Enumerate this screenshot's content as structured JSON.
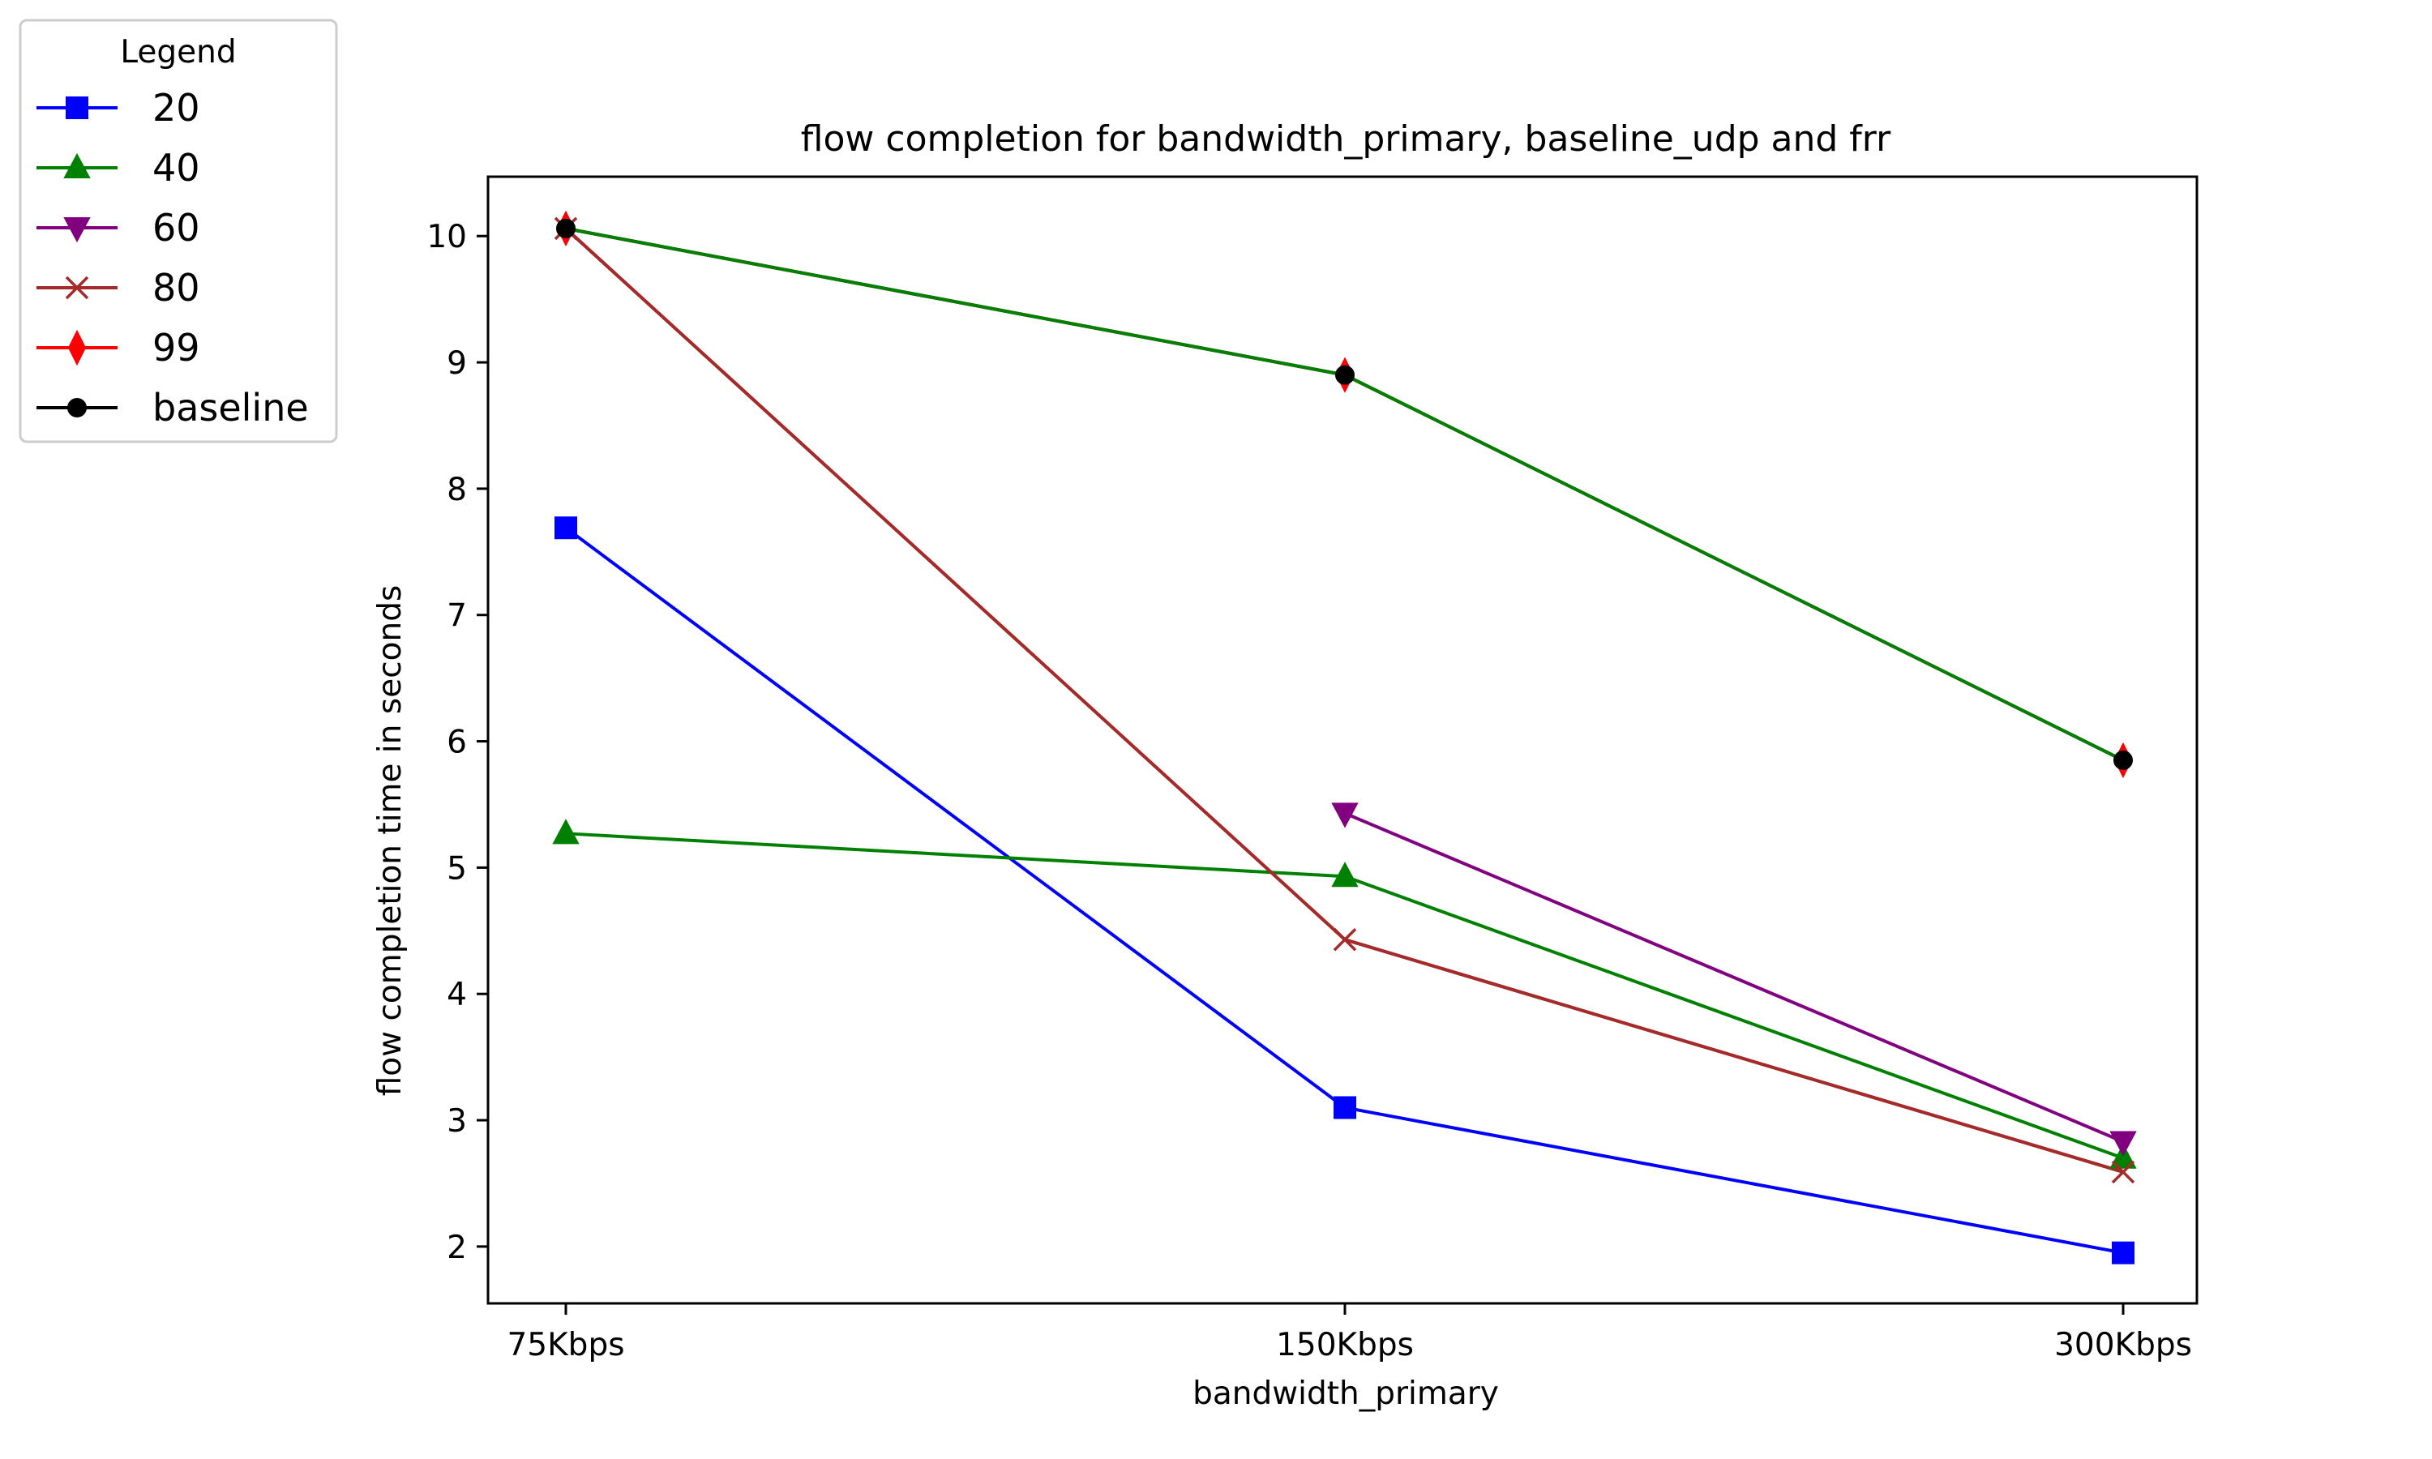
{
  "chart_data": {
    "type": "line",
    "title": "flow completion for bandwidth_primary, baseline_udp and frr",
    "xlabel": "bandwidth_primary",
    "ylabel": "flow completion time in seconds",
    "categories": [
      "75Kbps",
      "150Kbps",
      "300Kbps"
    ],
    "ylim": [
      1.55,
      10.47
    ],
    "yticks": [
      2,
      3,
      4,
      5,
      6,
      7,
      8,
      9,
      10
    ],
    "grid": false,
    "legend": {
      "title": "Legend",
      "placement": "outside top-left"
    },
    "series": [
      {
        "name": "20",
        "color": "#0000ff",
        "marker": "square",
        "values": [
          7.69,
          3.1,
          1.95
        ]
      },
      {
        "name": "40",
        "color": "#008000",
        "marker": "triangle-up",
        "values": [
          5.27,
          4.93,
          2.7
        ]
      },
      {
        "name": "60",
        "color": "#800080",
        "marker": "triangle-down",
        "values": [
          null,
          5.43,
          2.83
        ]
      },
      {
        "name": "80",
        "color": "#a52a2a",
        "marker": "x",
        "values": [
          10.06,
          4.43,
          2.59
        ]
      },
      {
        "name": "99",
        "color": "#ff0000",
        "marker": "thin-diamond",
        "values": [
          10.06,
          8.9,
          5.85
        ]
      },
      {
        "name": "baseline",
        "color": "#000000",
        "marker": "circle",
        "values": [
          10.06,
          8.9,
          5.85
        ]
      }
    ],
    "overlay": {
      "note": "upper line drawn in green with brown line from 75Kbps",
      "color": "#008000",
      "values": [
        10.06,
        8.9,
        5.85
      ]
    }
  }
}
